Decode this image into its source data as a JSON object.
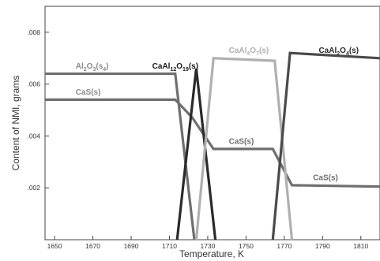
{
  "chart_data": {
    "type": "line",
    "title": "",
    "xlabel": "Temperature, K",
    "ylabel": "Content of NMI, grams",
    "xlim": [
      1645,
      1820
    ],
    "ylim": [
      0,
      0.009
    ],
    "x_ticks": [
      1650,
      1670,
      1690,
      1710,
      1730,
      1750,
      1770,
      1790,
      1810
    ],
    "x_tick_labels": [
      "1650",
      "1670",
      "1690",
      "1710",
      "1730",
      "1750",
      "1770",
      "1790",
      "1810"
    ],
    "y_ticks": [
      0.002,
      0.004,
      0.006,
      0.008
    ],
    "y_tick_labels": [
      ".002",
      ".004",
      ".006",
      ".008"
    ],
    "grid": false,
    "legend": "none",
    "series": [
      {
        "name": "Al2O3(s4)",
        "color": "#6f6f6f",
        "x": [
          1645,
          1713,
          1723
        ],
        "y": [
          0.0064,
          0.0064,
          0
        ]
      },
      {
        "name": "CaS(s)",
        "color": "#6f6f6f",
        "x": [
          1645,
          1713,
          1722,
          1733,
          1764,
          1774,
          1820
        ],
        "y": [
          0.0054,
          0.0054,
          0.0047,
          0.0035,
          0.0035,
          0.0021,
          0.00205
        ]
      },
      {
        "name": "CaAl12O19(s)",
        "color": "#2a2a2a",
        "x": [
          1714,
          1724,
          1734
        ],
        "y": [
          0,
          0.0066,
          0
        ]
      },
      {
        "name": "CaAl4O7(s)",
        "color": "#b0b0b0",
        "x": [
          1724,
          1733,
          1765,
          1774
        ],
        "y": [
          0,
          0.007,
          0.0069,
          0
        ]
      },
      {
        "name": "CaAl2O4(s)",
        "color": "#4a4a4a",
        "x": [
          1764,
          1773,
          1820
        ],
        "y": [
          0,
          0.0072,
          0.007
        ]
      }
    ],
    "annotations": [
      {
        "series": 0,
        "base": "Al",
        "sub1": "2",
        "mid": "O",
        "sub2": "3",
        "tail": "(s",
        "sub3": "4",
        "end": ")",
        "x": 1661,
        "y": 0.0066,
        "color": "#8a8a8a"
      },
      {
        "series": 1,
        "base": "CaS(s)",
        "sub1": "",
        "mid": "",
        "sub2": "",
        "tail": "",
        "sub3": "",
        "end": "",
        "x": 1661,
        "y": 0.0056,
        "color": "#8a8a8a"
      },
      {
        "series": 2,
        "base": "CaAl",
        "sub1": "12",
        "mid": "O",
        "sub2": "19",
        "tail": "(s)",
        "sub3": "",
        "end": "",
        "x": 1701,
        "y": 0.0066,
        "color": "#1a1a1a"
      },
      {
        "series": 3,
        "base": "CaAl",
        "sub1": "4",
        "mid": "O",
        "sub2": "7",
        "tail": "(s)",
        "sub3": "",
        "end": "",
        "x": 1741,
        "y": 0.0072,
        "color": "#b0b0b0"
      },
      {
        "series": 4,
        "base": "CaAl",
        "sub1": "2",
        "mid": "O",
        "sub2": "4",
        "tail": "(s)",
        "sub3": "",
        "end": "",
        "x": 1788,
        "y": 0.0072,
        "color": "#2a2a2a"
      },
      {
        "series": 1,
        "base": "CaS(s)",
        "sub1": "",
        "mid": "",
        "sub2": "",
        "tail": "",
        "sub3": "",
        "end": "",
        "x": 1741,
        "y": 0.0037,
        "color": "#6f6f6f"
      },
      {
        "series": 1,
        "base": "CaS(s)",
        "sub1": "",
        "mid": "",
        "sub2": "",
        "tail": "",
        "sub3": "",
        "end": "",
        "x": 1785,
        "y": 0.0023,
        "color": "#6f6f6f"
      }
    ]
  }
}
